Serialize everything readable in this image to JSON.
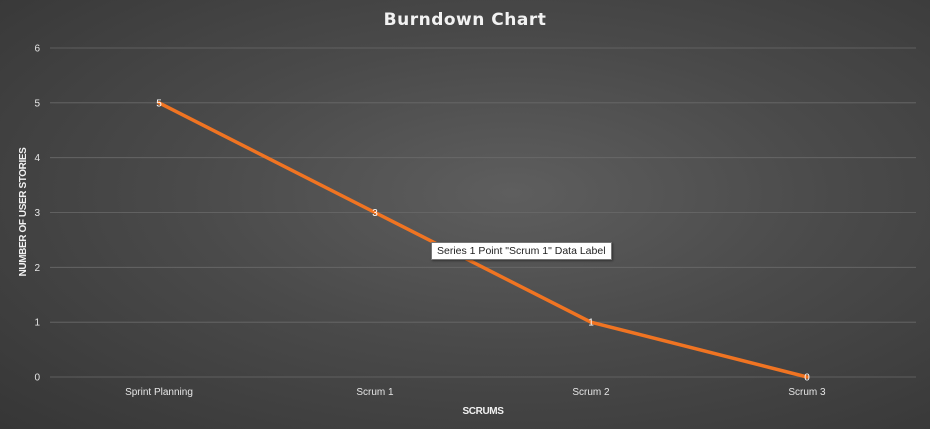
{
  "colors": {
    "series": "#f07422",
    "gridline": "#6a6a6a"
  },
  "tooltip": {
    "text": "Series 1 Point \"Scrum 1\" Data Label"
  },
  "chart_data": {
    "type": "line",
    "title": "Burndown Chart",
    "xlabel": "SCRUMS",
    "ylabel": "NUMBER OF USER STORIES",
    "categories": [
      "Sprint Planning",
      "Scrum 1",
      "Scrum 2",
      "Scrum 3"
    ],
    "series": [
      {
        "name": "Series 1",
        "values": [
          5,
          3,
          1,
          0
        ]
      }
    ],
    "data_labels": [
      "5",
      "3",
      "1",
      "0"
    ],
    "ylim": [
      0,
      6
    ],
    "yticks": [
      0,
      1,
      2,
      3,
      4,
      5,
      6
    ],
    "grid": true,
    "legend": "none"
  }
}
